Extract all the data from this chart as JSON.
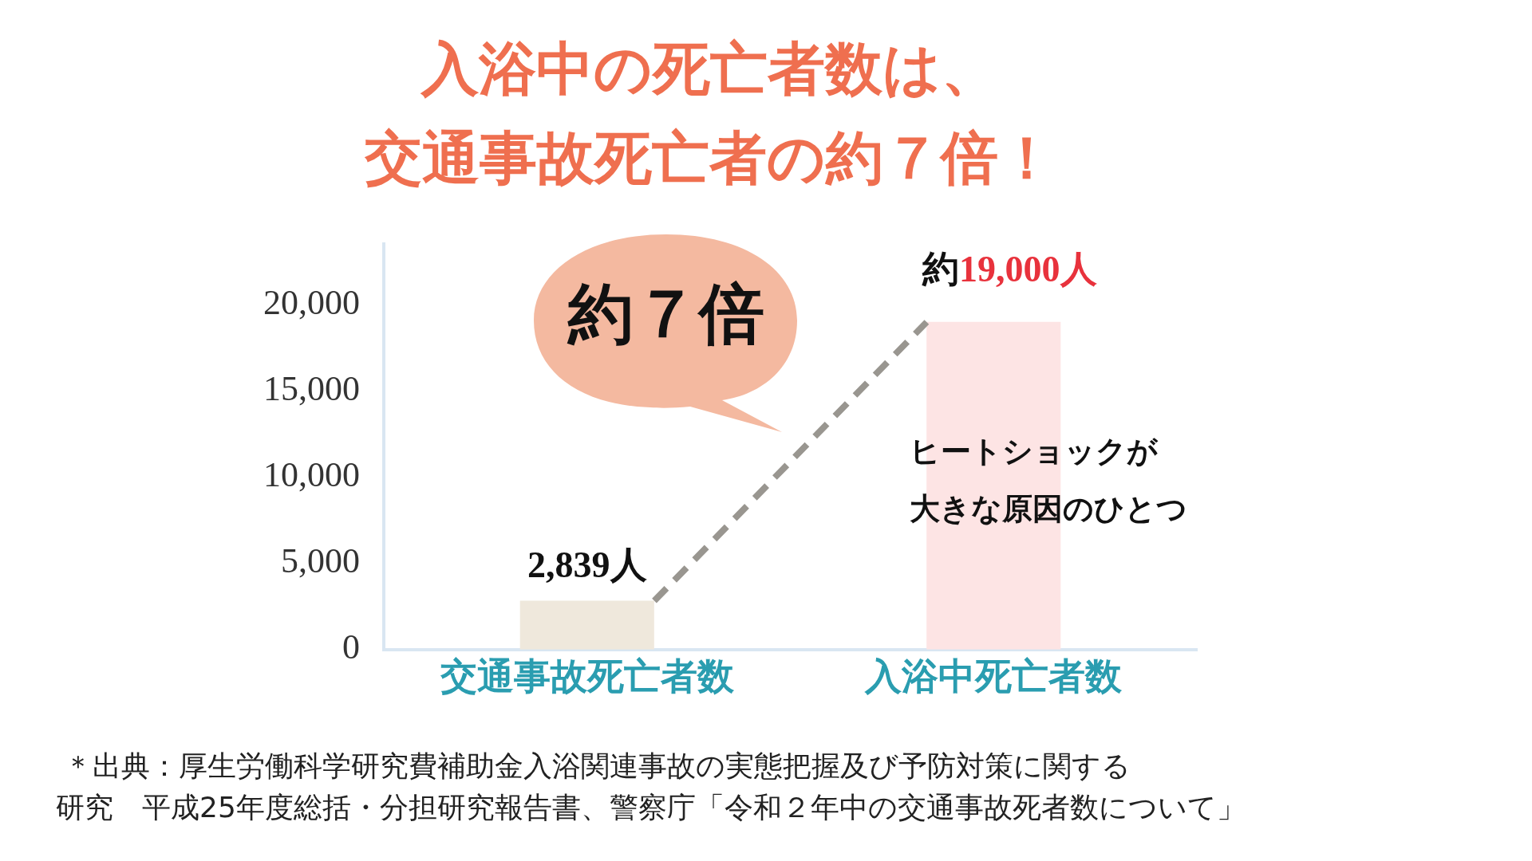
{
  "chart_data": {
    "type": "bar",
    "title": "入浴中の死亡者数は、交通事故死亡者の約７倍！",
    "categories": [
      "交通事故死亡者数",
      "入浴中死亡者数"
    ],
    "values": [
      2839,
      19000
    ],
    "colors": [
      "#efe8dc",
      "#fde4e4"
    ],
    "value_labels": [
      "2,839人",
      "約19,000人"
    ],
    "ylim": [
      0,
      23500
    ],
    "yticks": [
      {
        "value": 0,
        "label": "0"
      },
      {
        "value": 5000,
        "label": "5,000"
      },
      {
        "value": 10000,
        "label": "10,000"
      },
      {
        "value": 15000,
        "label": "15,000"
      },
      {
        "value": 20000,
        "label": "20,000"
      }
    ],
    "grid": false,
    "legend": false,
    "annotations": [
      "約７倍",
      "ヒートショックが大きな原因のひとつ",
      "＊出典：厚生労働科学研究費補助金入浴関連事故の実態把握及び予防対策に関する",
      "研究　平成25年度総括・分担研究報告書、警察庁「令和２年中の交通事故死者数について」"
    ]
  }
}
